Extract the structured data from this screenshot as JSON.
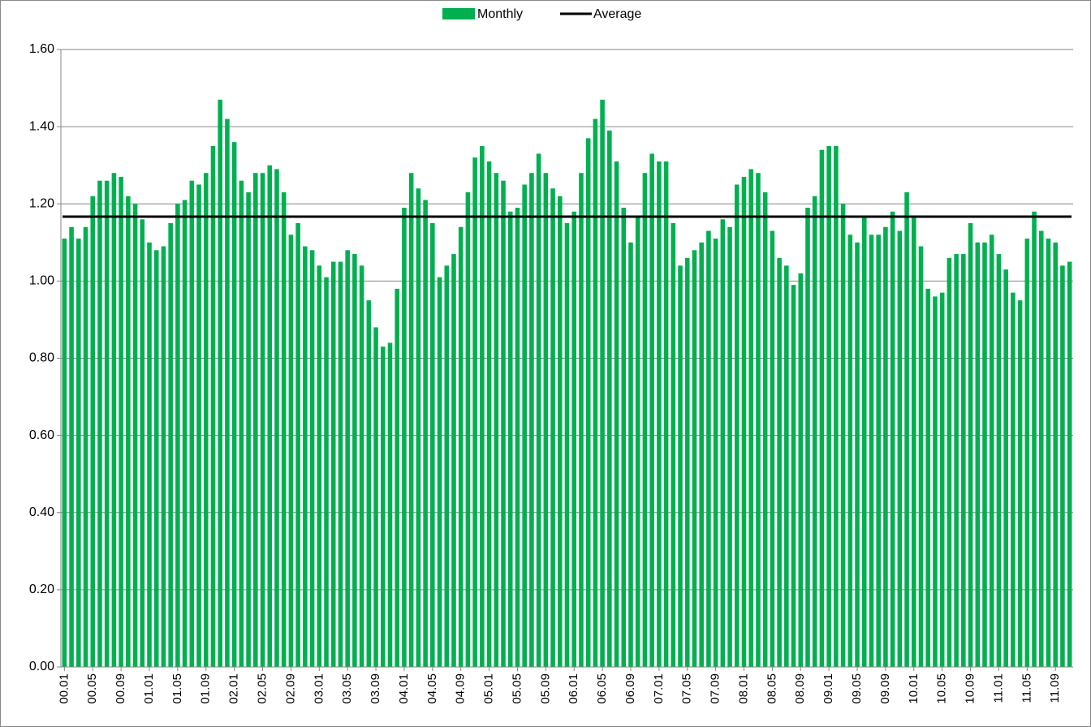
{
  "chart_data": {
    "type": "bar",
    "categories": [
      "00.01",
      null,
      null,
      null,
      "00.05",
      null,
      null,
      null,
      "00.09",
      null,
      null,
      null,
      "01.01",
      null,
      null,
      null,
      "01.05",
      null,
      null,
      null,
      "01.09",
      null,
      null,
      null,
      "02.01",
      null,
      null,
      null,
      "02.05",
      null,
      null,
      null,
      "02.09",
      null,
      null,
      null,
      "03.01",
      null,
      null,
      null,
      "03.05",
      null,
      null,
      null,
      "03.09",
      null,
      null,
      null,
      "04.01",
      null,
      null,
      null,
      "04.05",
      null,
      null,
      null,
      "04.09",
      null,
      null,
      null,
      "05.01",
      null,
      null,
      null,
      "05.05",
      null,
      null,
      null,
      "05.09",
      null,
      null,
      null,
      "06.01",
      null,
      null,
      null,
      "06.05",
      null,
      null,
      null,
      "06.09",
      null,
      null,
      null,
      "07.01",
      null,
      null,
      null,
      "07.05",
      null,
      null,
      null,
      "07.09",
      null,
      null,
      null,
      "08.01",
      null,
      null,
      null,
      "08.05",
      null,
      null,
      null,
      "08.09",
      null,
      null,
      null,
      "09.01",
      null,
      null,
      null,
      "09.05",
      null,
      null,
      null,
      "09.09",
      null,
      null,
      null,
      "10.01",
      null,
      null,
      null,
      "10.05",
      null,
      null,
      null,
      "10.09",
      null,
      null,
      null,
      "11.01",
      null,
      null,
      null,
      "11.05",
      null,
      null,
      null,
      "11.09",
      null,
      null
    ],
    "series": [
      {
        "name": "Monthly",
        "color": "#00b050",
        "values": [
          1.11,
          1.14,
          1.11,
          1.14,
          1.22,
          1.26,
          1.26,
          1.28,
          1.27,
          1.22,
          1.2,
          1.16,
          1.1,
          1.08,
          1.09,
          1.15,
          1.2,
          1.21,
          1.26,
          1.25,
          1.28,
          1.35,
          1.47,
          1.42,
          1.36,
          1.26,
          1.23,
          1.28,
          1.28,
          1.3,
          1.29,
          1.23,
          1.12,
          1.15,
          1.09,
          1.08,
          1.04,
          1.01,
          1.05,
          1.05,
          1.08,
          1.07,
          1.04,
          0.95,
          0.88,
          0.83,
          0.84,
          0.98,
          1.19,
          1.28,
          1.24,
          1.21,
          1.15,
          1.01,
          1.04,
          1.07,
          1.14,
          1.23,
          1.32,
          1.35,
          1.31,
          1.28,
          1.26,
          1.18,
          1.19,
          1.25,
          1.28,
          1.33,
          1.28,
          1.24,
          1.22,
          1.15,
          1.18,
          1.28,
          1.37,
          1.42,
          1.47,
          1.39,
          1.31,
          1.19,
          1.1,
          1.17,
          1.28,
          1.33,
          1.31,
          1.31,
          1.15,
          1.04,
          1.06,
          1.08,
          1.1,
          1.13,
          1.11,
          1.16,
          1.14,
          1.25,
          1.27,
          1.29,
          1.28,
          1.23,
          1.13,
          1.06,
          1.04,
          0.99,
          1.02,
          1.19,
          1.22,
          1.34,
          1.35,
          1.35,
          1.2,
          1.12,
          1.1,
          1.17,
          1.12,
          1.12,
          1.14,
          1.18,
          1.13,
          1.23,
          1.17,
          1.09,
          0.98,
          0.96,
          0.97,
          1.06,
          1.07,
          1.07,
          1.15,
          1.1,
          1.1,
          1.12,
          1.07,
          1.03,
          0.97,
          0.95,
          1.11,
          1.18,
          1.13,
          1.11,
          1.1,
          1.04,
          1.05
        ]
      }
    ],
    "average": {
      "name": "Average",
      "color": "#000000",
      "value": 1.167
    },
    "ylim": [
      0,
      1.6
    ],
    "yticks": [
      {
        "value": 0,
        "label": "0.00"
      },
      {
        "value": 0.2,
        "label": "0.20"
      },
      {
        "value": 0.4,
        "label": "0.40"
      },
      {
        "value": 0.6,
        "label": "0.60"
      },
      {
        "value": 0.8,
        "label": "0.80"
      },
      {
        "value": 1.0,
        "label": "1.00"
      },
      {
        "value": 1.2,
        "label": "1.20"
      },
      {
        "value": 1.4,
        "label": "1.40"
      },
      {
        "value": 1.6,
        "label": "1.60"
      }
    ],
    "grid": true,
    "legend": "top"
  }
}
